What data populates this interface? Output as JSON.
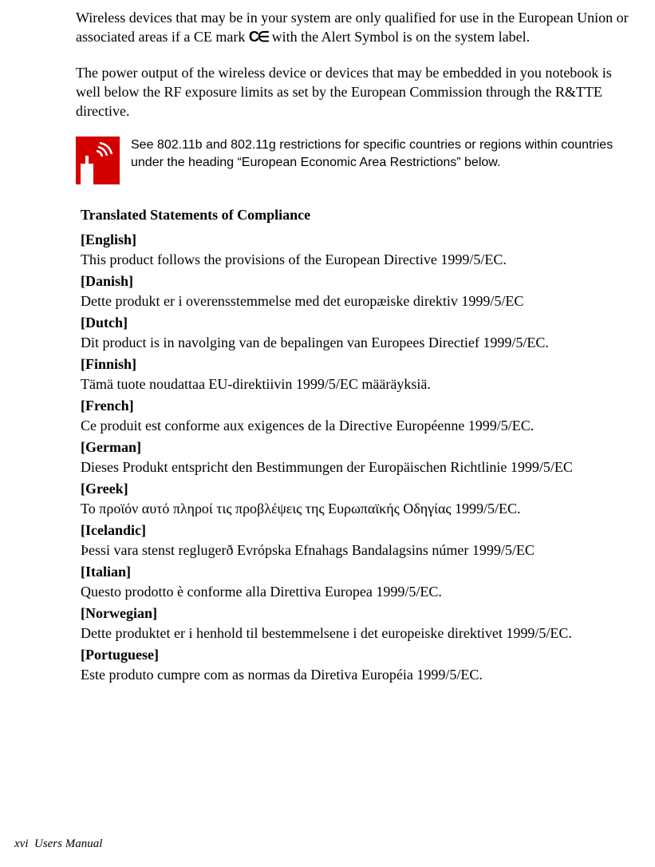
{
  "para1_pre": "Wireless devices that may be in your system are only qualified for use in the European Union or associated areas if a CE mark ",
  "para1_post": " with the Alert Symbol is on the system label.",
  "para2": "The power output of the wireless device or devices that may be embedded in you notebook is well below the RF exposure limits as set by the European Commission through the R&TTE directive.",
  "note": "See 802.11b and 802.11g restrictions for specific countries or regions within countries under the heading “European Economic Area Restrictions” below.",
  "section_title": "Translated Statements of Compliance",
  "statements": [
    {
      "label": "[English]",
      "text": "This product follows the provisions of the European Directive 1999/5/EC."
    },
    {
      "label": "[Danish]",
      "text": "Dette produkt er i overensstemmelse med det europæiske direktiv 1999/5/EC"
    },
    {
      "label": "[Dutch]",
      "text": "Dit product is in navolging van de bepalingen van Europees Directief 1999/5/EC."
    },
    {
      "label": "[Finnish]",
      "text": "Tämä tuote noudattaa EU-direktiivin 1999/5/EC määräyksiä."
    },
    {
      "label": "[French]",
      "text": "Ce produit est conforme aux exigences de la Directive Européenne 1999/5/EC."
    },
    {
      "label": "[German]",
      "text": "Dieses Produkt entspricht den Bestimmungen der Europäischen Richtlinie 1999/5/EC"
    },
    {
      "label": "[Greek]",
      "text": "Το προϊόν αυτό πληροί τις προβλέψεις της Ευρωπαϊκής Οδηγίας 1999/5/EC."
    },
    {
      "label": "[Icelandic]",
      "text": "Þessi vara stenst reglugerð Evrópska Efnahags Bandalagsins númer 1999/5/EC"
    },
    {
      "label": "[Italian]",
      "text": "Questo prodotto è conforme alla Direttiva Europea 1999/5/EC."
    },
    {
      "label": "[Norwegian]",
      "text": "Dette produktet er i henhold til bestemmelsene i det europeiske direktivet 1999/5/EC."
    },
    {
      "label": "[Portuguese]",
      "text": "Este produto cumpre com as normas da Diretiva Européia 1999/5/EC."
    }
  ],
  "footer_page": "xvi",
  "footer_title": "Users Manual"
}
